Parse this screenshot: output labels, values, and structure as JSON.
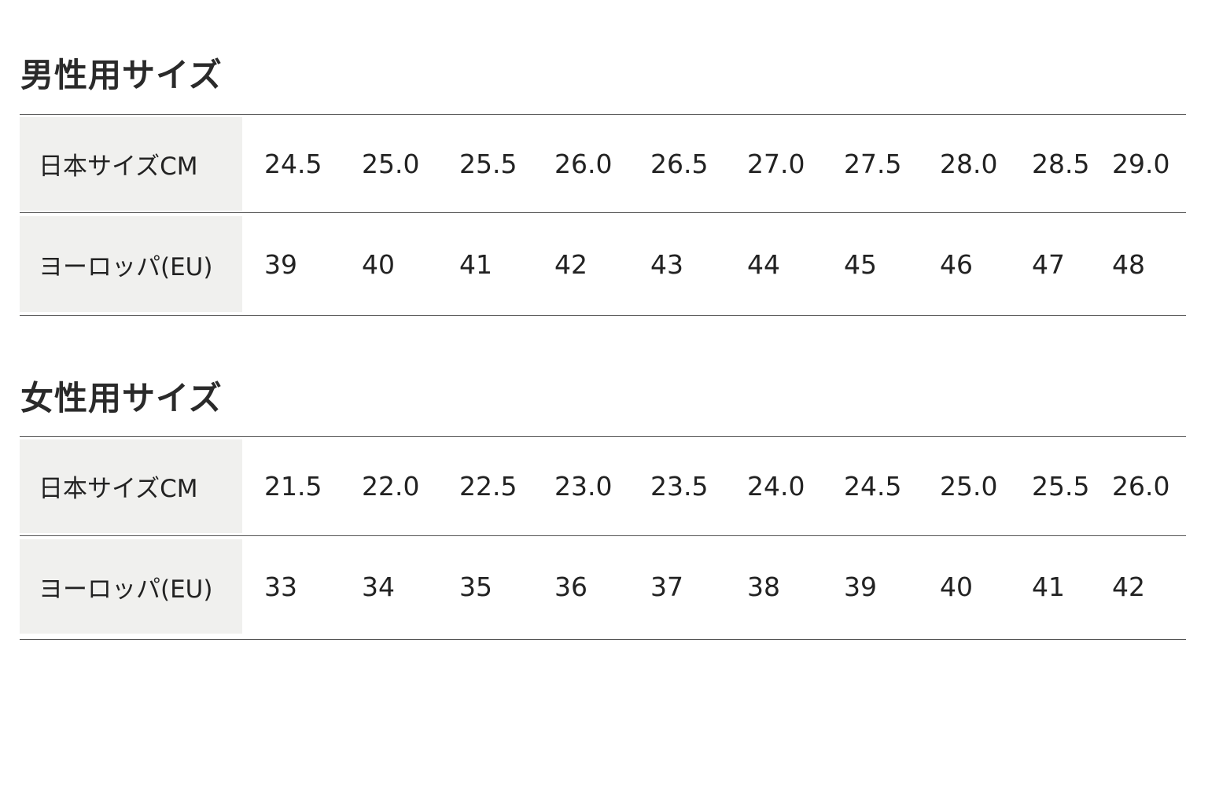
{
  "men": {
    "title": "男性用サイズ",
    "rows": [
      {
        "label": "日本サイズCM",
        "values": [
          "24.5",
          "25.0",
          "25.5",
          "26.0",
          "26.5",
          "27.0",
          "27.5",
          "28.0",
          "28.5",
          "29.0"
        ]
      },
      {
        "label": "ヨーロッパ(EU)",
        "values": [
          "39",
          "40",
          "41",
          "42",
          "43",
          "44",
          "45",
          "46",
          "47",
          "48"
        ]
      }
    ]
  },
  "women": {
    "title": "女性用サイズ",
    "rows": [
      {
        "label": "日本サイズCM",
        "values": [
          "21.5",
          "22.0",
          "22.5",
          "23.0",
          "23.5",
          "24.0",
          "24.5",
          "25.0",
          "25.5",
          "26.0"
        ]
      },
      {
        "label": "ヨーロッパ(EU)",
        "values": [
          "33",
          "34",
          "35",
          "36",
          "37",
          "38",
          "39",
          "40",
          "41",
          "42"
        ]
      }
    ]
  }
}
